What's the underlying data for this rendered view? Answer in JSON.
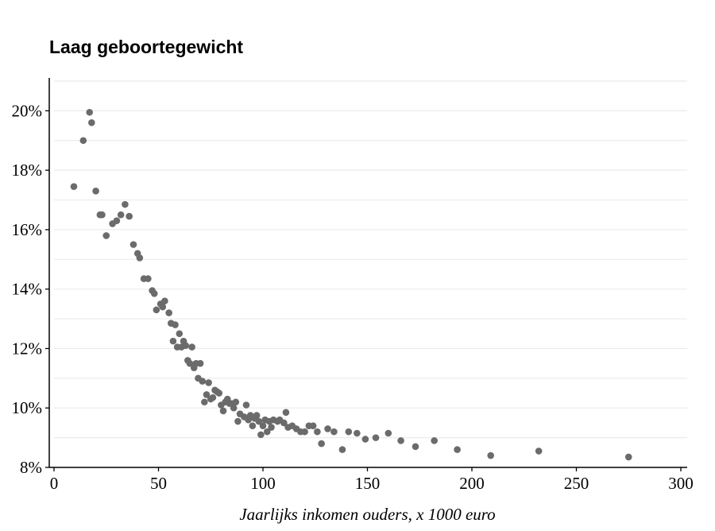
{
  "title": "Laag geboortegewicht",
  "chart_data": {
    "type": "scatter",
    "title": "Laag geboortegewicht",
    "xlabel": "Jaarlijks inkomen ouders, x 1000 euro",
    "ylabel": "",
    "xlim": [
      0,
      300
    ],
    "ylim": [
      8,
      21
    ],
    "x_ticks": [
      0,
      50,
      100,
      150,
      200,
      250,
      300
    ],
    "y_ticks": [
      8,
      10,
      12,
      14,
      16,
      18,
      20
    ],
    "y_tick_format": "percent",
    "grid": "horizontal",
    "point_color": "#6b6b6b",
    "x": [
      9.5,
      14,
      17,
      18,
      20,
      22,
      23,
      25,
      28,
      30,
      32,
      34,
      36,
      38,
      40,
      41,
      43,
      45,
      47,
      48,
      49,
      51,
      52,
      53,
      55,
      56,
      57,
      58,
      59,
      60,
      61,
      62,
      63,
      64,
      65,
      66,
      67,
      68,
      69,
      70,
      71,
      72,
      73,
      74,
      75,
      76,
      77,
      78,
      79,
      80,
      81,
      82,
      83,
      84,
      85,
      86,
      87,
      88,
      89,
      91,
      92,
      93,
      94,
      95,
      96,
      97,
      98,
      99,
      100,
      101,
      102,
      103,
      104,
      105,
      107,
      108,
      110,
      111,
      112,
      114,
      116,
      118,
      120,
      122,
      124,
      126,
      128,
      131,
      134,
      138,
      141,
      145,
      149,
      154,
      160,
      166,
      173,
      182,
      193,
      209,
      232,
      275
    ],
    "y": [
      17.45,
      19.0,
      19.95,
      19.6,
      17.3,
      16.5,
      16.5,
      15.8,
      16.2,
      16.3,
      16.5,
      16.85,
      16.45,
      15.5,
      15.2,
      15.05,
      14.35,
      14.35,
      13.95,
      13.85,
      13.3,
      13.5,
      13.4,
      13.6,
      13.2,
      12.85,
      12.25,
      12.8,
      12.05,
      12.5,
      12.05,
      12.25,
      12.1,
      11.6,
      11.5,
      12.05,
      11.35,
      11.5,
      11.0,
      11.5,
      10.9,
      10.2,
      10.45,
      10.85,
      10.3,
      10.35,
      10.6,
      10.55,
      10.5,
      10.1,
      9.9,
      10.2,
      10.3,
      10.15,
      10.15,
      10.0,
      10.2,
      9.55,
      9.8,
      9.7,
      10.1,
      9.6,
      9.75,
      9.4,
      9.65,
      9.75,
      9.55,
      9.1,
      9.4,
      9.6,
      9.2,
      9.55,
      9.35,
      9.6,
      9.55,
      9.6,
      9.5,
      9.85,
      9.35,
      9.4,
      9.3,
      9.2,
      9.2,
      9.4,
      9.4,
      9.2,
      8.8,
      9.3,
      9.2,
      8.6,
      9.2,
      9.15,
      8.95,
      9.0,
      9.15,
      8.9,
      8.7,
      8.9,
      8.6,
      8.4,
      8.55,
      8.35
    ]
  }
}
